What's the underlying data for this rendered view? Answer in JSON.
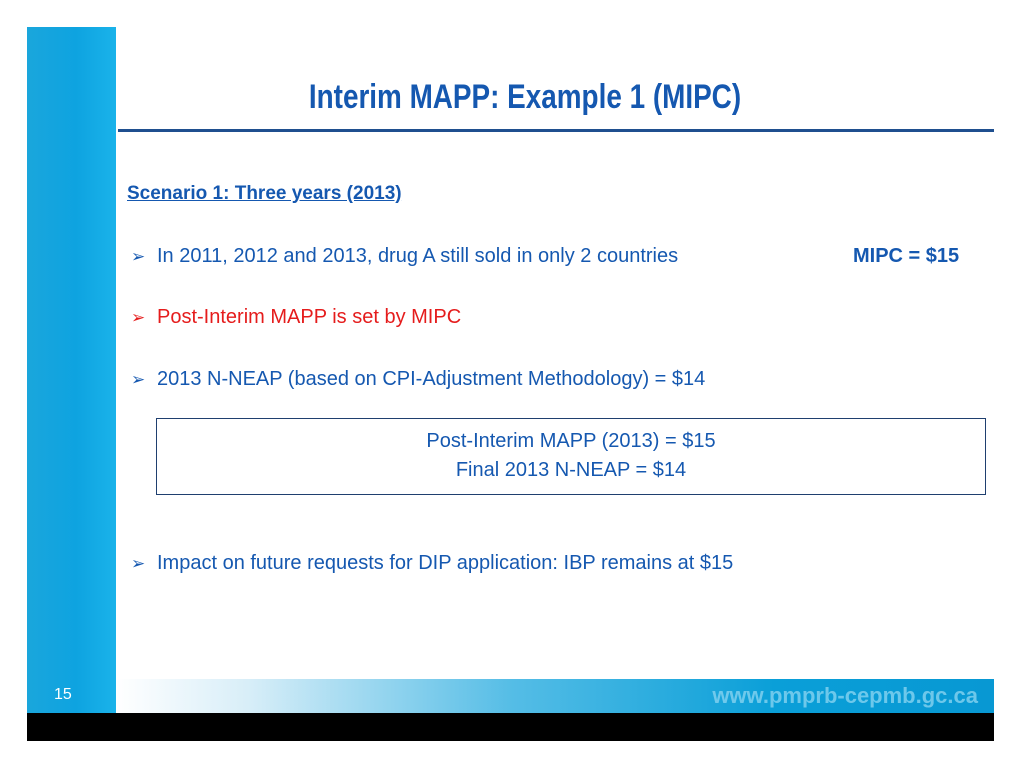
{
  "title": "Interim MAPP: Example 1 (MIPC)",
  "scenario": "Scenario 1: Three years (2013)",
  "bullets": [
    {
      "text": "In 2011, 2012 and 2013, drug A still sold in only 2 countries",
      "arrow": "➢"
    },
    {
      "text": "Post-Interim MAPP is set by MIPC",
      "arrow": "➢"
    },
    {
      "text": "2013 N-NEAP (based on CPI-Adjustment Methodology) =  $14",
      "arrow": "➢"
    },
    {
      "text": "Impact on future requests for DIP application:  IBP remains at $15",
      "arrow": "➢"
    }
  ],
  "mipc_label": "MIPC = $15",
  "box": {
    "line1": "Post-Interim MAPP (2013) = $15",
    "line2": "Final 2013 N-NEAP = $14"
  },
  "footer": {
    "page_number": "15",
    "url": "www.pmprb-cepmb.gc.ca"
  },
  "colors": {
    "accent": "#1558b0",
    "highlight": "#e51c1c",
    "sidebar": "#0ea3e0"
  }
}
